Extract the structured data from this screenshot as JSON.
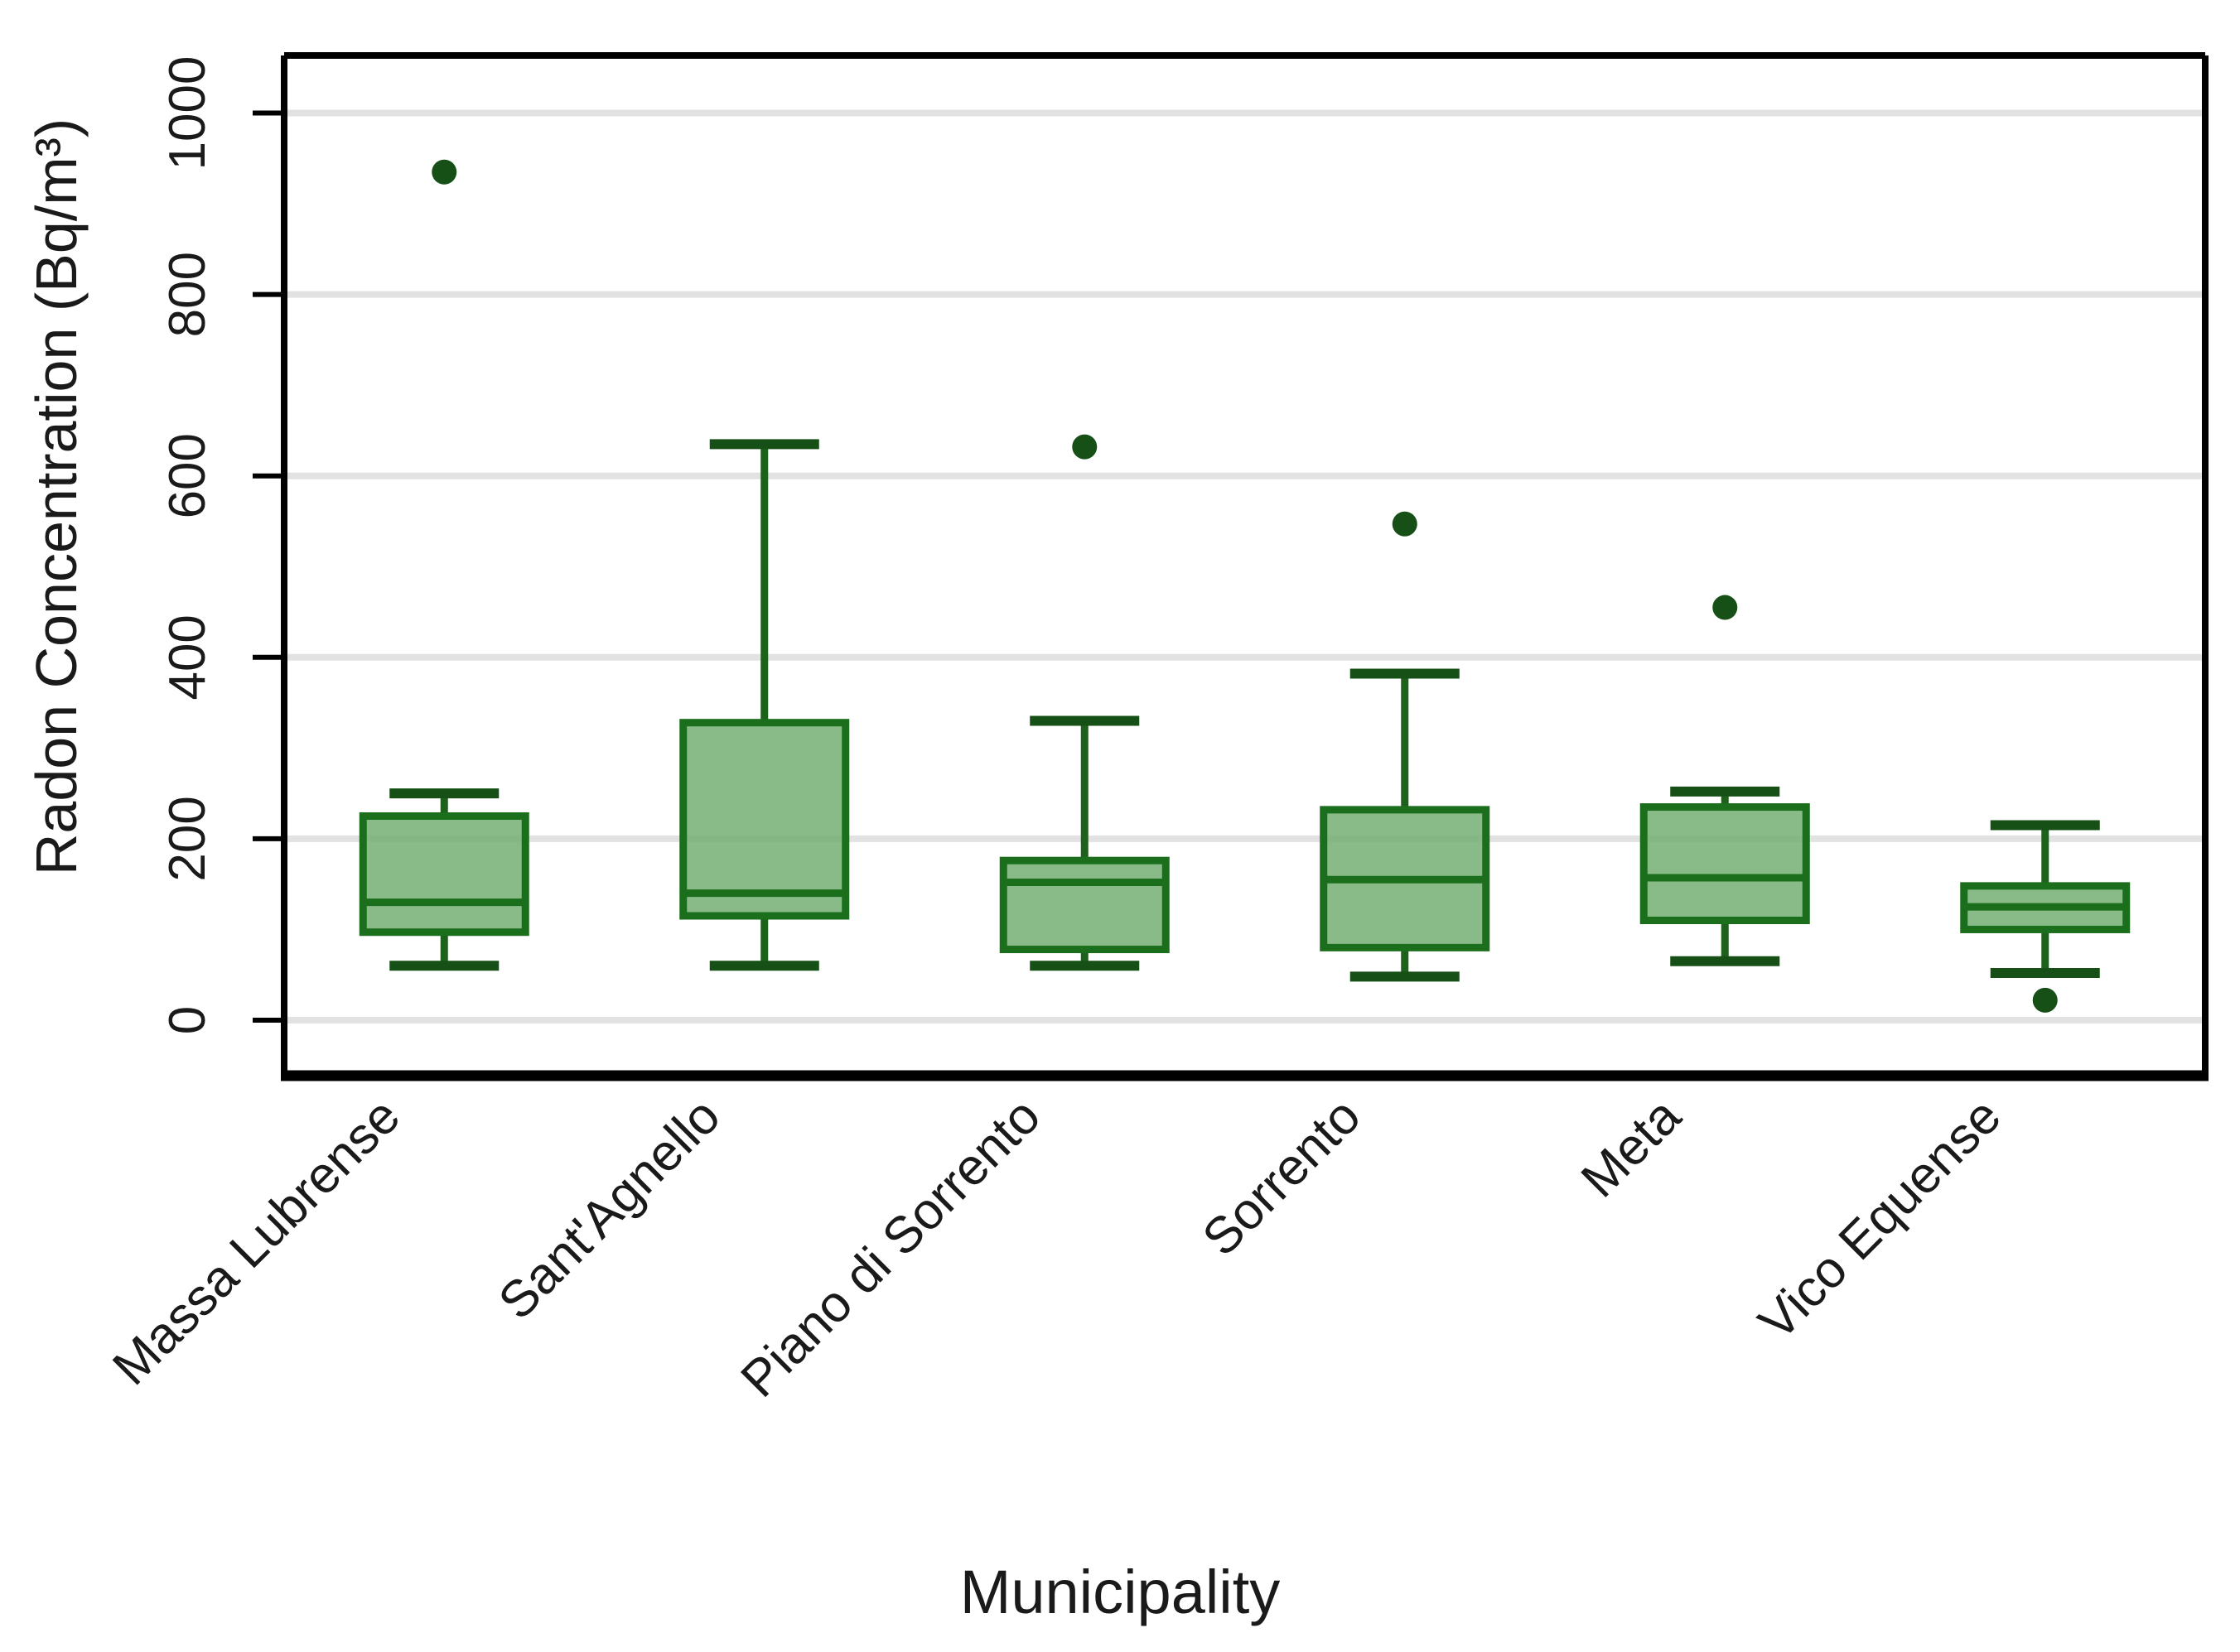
{
  "figure": {
    "background": "#ffffff"
  },
  "chart_data": {
    "type": "boxplot",
    "title": "",
    "xlabel": "Municipality",
    "ylabel": "Radon Concentration (Bq/m³)",
    "ylim": [
      0,
      1000
    ],
    "yticks": [
      0,
      200,
      400,
      600,
      800,
      1000
    ],
    "grid": "horizontal-light-gray",
    "legend": "none",
    "categories": [
      "Massa Lubrense",
      "Sant'Agnello",
      "Piano di Sorrento",
      "Sorrento",
      "Meta",
      "Vico Equense"
    ],
    "series": [
      {
        "name": "Massa Lubrense",
        "whisker_low": 60,
        "q1": 97,
        "median": 130,
        "q3": 225,
        "whisker_high": 250,
        "outliers": [
          935
        ]
      },
      {
        "name": "Sant'Agnello",
        "whisker_low": 60,
        "q1": 115,
        "median": 140,
        "q3": 328,
        "whisker_high": 635,
        "outliers": []
      },
      {
        "name": "Piano di Sorrento",
        "whisker_low": 60,
        "q1": 78,
        "median": 152,
        "q3": 176,
        "whisker_high": 330,
        "outliers": [
          632
        ]
      },
      {
        "name": "Sorrento",
        "whisker_low": 48,
        "q1": 80,
        "median": 155,
        "q3": 232,
        "whisker_high": 382,
        "outliers": [
          547
        ]
      },
      {
        "name": "Meta",
        "whisker_low": 65,
        "q1": 110,
        "median": 157,
        "q3": 235,
        "whisker_high": 252,
        "outliers": [
          455
        ]
      },
      {
        "name": "Vico Equense",
        "whisker_low": 52,
        "q1": 100,
        "median": 125,
        "q3": 148,
        "whisker_high": 215,
        "outliers": [
          22
        ]
      }
    ],
    "colors": {
      "box_fill": "#74af74",
      "box_stroke": "#1b6e1b",
      "median": "#1b6e1b",
      "whisker": "#1d611d",
      "cap": "#175017",
      "outlier": "#175017",
      "gridline": "#e2e2e2",
      "axis": "#000000",
      "text": "#1a1a1a"
    }
  }
}
